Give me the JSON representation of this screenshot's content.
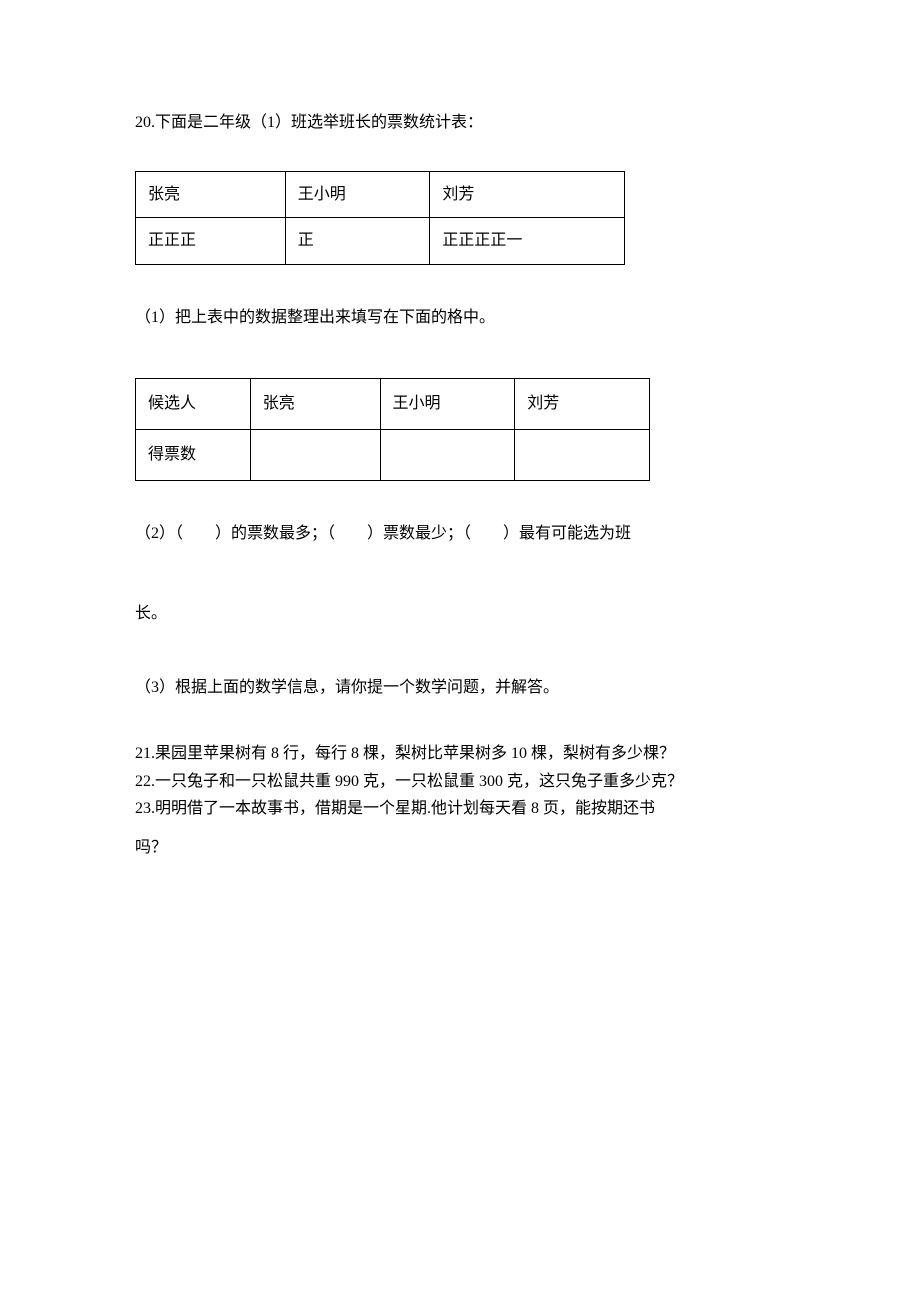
{
  "q20": {
    "header": "20.下面是二年级（1）班选举班长的票数统计表：",
    "tally_table": {
      "headers": [
        "张亮",
        "王小明",
        "刘芳"
      ],
      "tallies": [
        "正正正",
        "正",
        "正正正正一"
      ]
    },
    "sub1": {
      "text": "（1）把上表中的数据整理出来填写在下面的格中。",
      "row1_label": "候选人",
      "candidates": [
        "张亮",
        "王小明",
        "刘芳"
      ],
      "row2_label": "得票数",
      "values": [
        "",
        "",
        ""
      ]
    },
    "sub2": {
      "line1": "（2）（　　）的票数最多；（　　）票数最少；（　　）最有可能选为班",
      "line2": "长。"
    },
    "sub3": "（3）根据上面的数学信息，请你提一个数学问题，并解答。"
  },
  "q21": "21.果园里苹果树有 8 行，每行 8 棵，梨树比苹果树多 10 棵，梨树有多少棵？",
  "q22": "22.一只兔子和一只松鼠共重 990 克，一只松鼠重 300 克，这只兔子重多少克？",
  "q23": {
    "line1": "23.明明借了一本故事书，借期是一个星期.他计划每天看 8 页，能按期还书",
    "line2": "吗？"
  }
}
